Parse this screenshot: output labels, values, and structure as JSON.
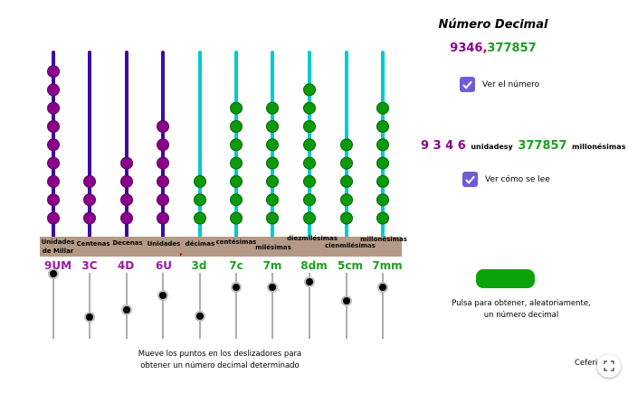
{
  "title": "Número Decimal",
  "number": {
    "integer_part": "9346",
    "decimal_separator": ",",
    "decimal_part": "377857"
  },
  "checkboxes": [
    {
      "label": "Ver el número",
      "checked": true
    },
    {
      "label": "Ver cómo se lee",
      "checked": true
    }
  ],
  "reading": {
    "integer": "9 3 4 6",
    "integer_unit": "unidades",
    "connector": "y",
    "decimal": "377857",
    "decimal_unit": "millonésimas"
  },
  "instructions": {
    "sliders": [
      "Mueve los puntos en los deslizadores para",
      "obtener un número decimal determinado"
    ],
    "random": [
      "Pulsa para obtener, aleatoriamente,",
      "un  número decimal"
    ]
  },
  "author": "Ceferi",
  "colors": {
    "integer_rod": "#3a0ca3",
    "decimal_rod": "#00cccc",
    "integer_bead": "#8b008b",
    "decimal_bead": "#0a9a0a",
    "base_bar": "#b49a86",
    "accent_button": "#0aa40a",
    "checkbox": "#6e5bd6"
  },
  "abacus": {
    "columns": [
      {
        "label": [
          "Unidades",
          "de Millar"
        ],
        "code": "9UM",
        "value": 9,
        "type": "integer"
      },
      {
        "label": [
          "Centenas"
        ],
        "code": "3C",
        "value": 3,
        "type": "integer"
      },
      {
        "label": [
          "Decenas"
        ],
        "code": "4D",
        "value": 4,
        "type": "integer"
      },
      {
        "label": [
          "Unidades"
        ],
        "code": "6U",
        "value": 6,
        "type": "integer"
      },
      {
        "label": [
          "décimas"
        ],
        "code": "3d",
        "value": 3,
        "type": "decimal"
      },
      {
        "label": [
          "centésimas"
        ],
        "code": "7c",
        "value": 7,
        "type": "decimal"
      },
      {
        "label": [
          "milésimas"
        ],
        "code": "7m",
        "value": 7,
        "type": "decimal"
      },
      {
        "label": [
          "diezmilésimas"
        ],
        "code": "8dm",
        "value": 8,
        "type": "decimal"
      },
      {
        "label": [
          "cienmilésimas"
        ],
        "code": "5cm",
        "value": 5,
        "type": "decimal"
      },
      {
        "label": [
          "millonésimas"
        ],
        "code": "7mm",
        "value": 7,
        "type": "decimal"
      }
    ],
    "decimal_mark": ","
  }
}
